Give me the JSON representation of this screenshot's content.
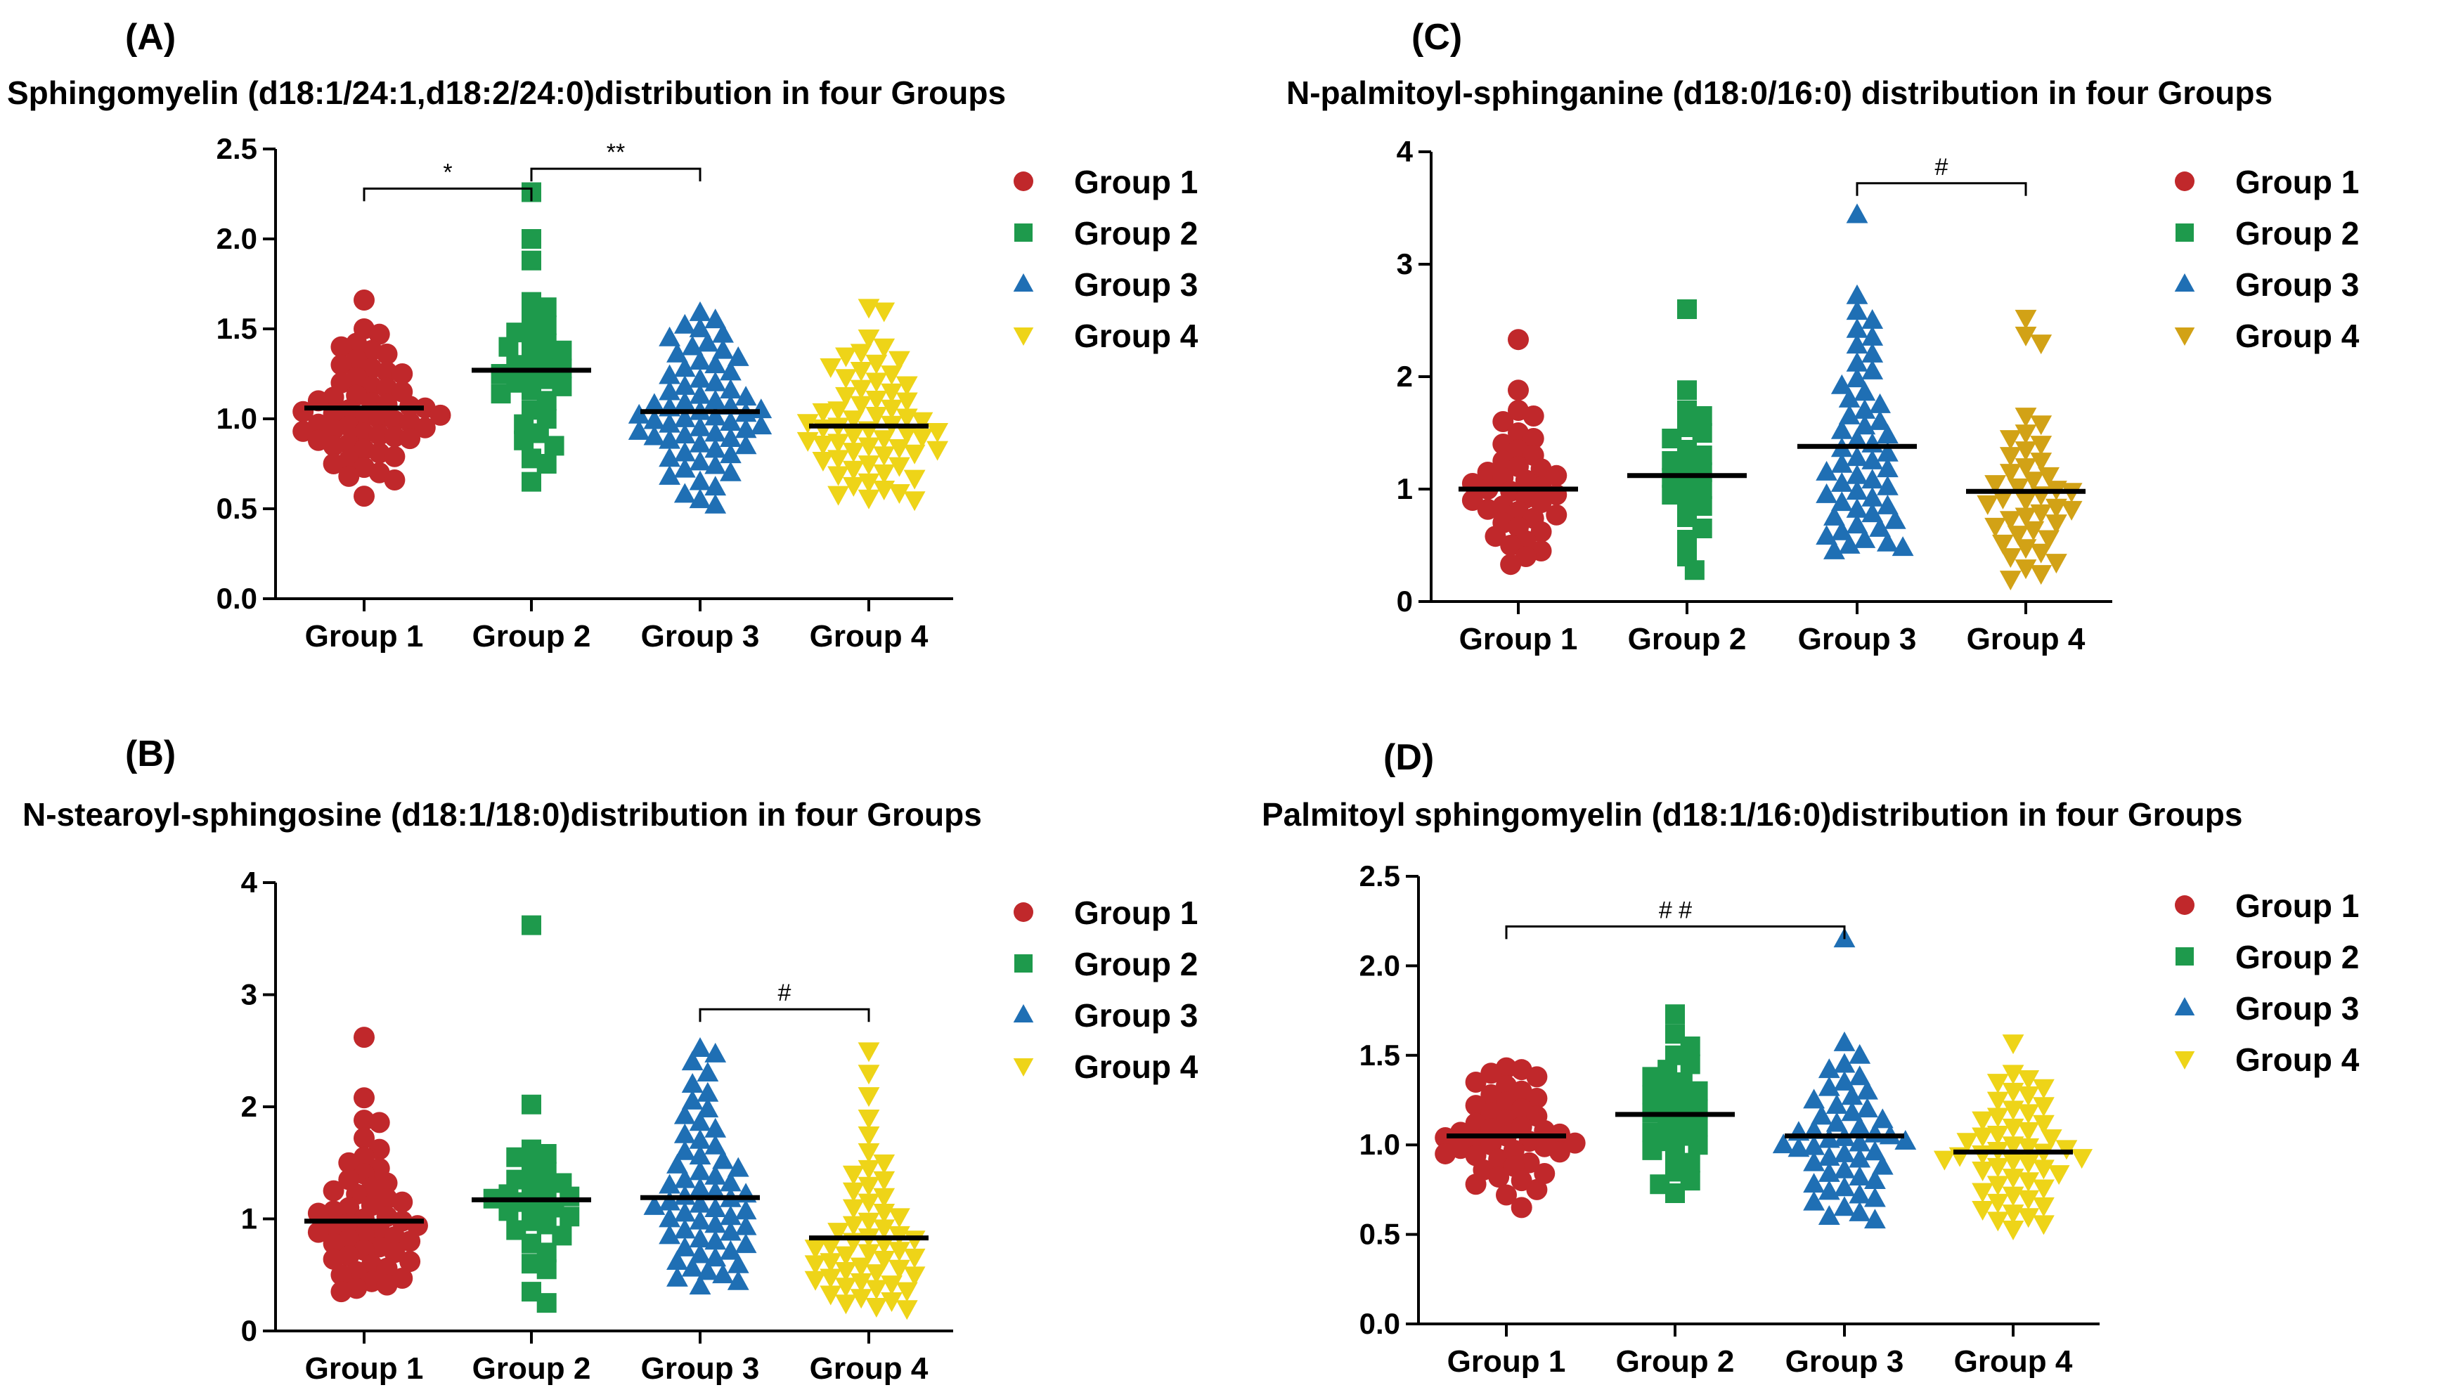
{
  "colors": {
    "group1": "#c0282b",
    "group2": "#1e9a4c",
    "group3": "#1f6fb4",
    "group4_A": "#eed418",
    "group4_B": "#eed418",
    "group4_C": "#d2a216",
    "group4_D": "#eed418"
  },
  "legend_labels": [
    "Group 1",
    "Group 2",
    "Group 3",
    "Group 4"
  ],
  "chart_data": [
    {
      "id": "A",
      "panel_label": "(A)",
      "type": "scatter",
      "title": "Sphingomyelin (d18:1/24:1,d18:2/24:0)distribution in four Groups",
      "categories": [
        "Group 1",
        "Group 2",
        "Group 3",
        "Group 4"
      ],
      "ylim": [
        0,
        2.5
      ],
      "yticks": [
        "0.0",
        "0.5",
        "1.0",
        "1.5",
        "2.0",
        "2.5"
      ],
      "ytick_values": [
        0,
        0.5,
        1.0,
        1.5,
        2.0,
        2.5
      ],
      "means": [
        1.06,
        1.27,
        1.04,
        0.96
      ],
      "series": [
        {
          "name": "Group 1",
          "marker": "circle",
          "values": [
            1.66,
            0.57,
            1.5,
            1.47,
            1.42,
            1.4,
            1.38,
            1.36,
            1.33,
            1.3,
            1.28,
            1.26,
            1.25,
            1.23,
            1.2,
            1.18,
            1.17,
            1.15,
            1.13,
            1.12,
            1.1,
            1.09,
            1.08,
            1.07,
            1.06,
            1.05,
            1.04,
            1.03,
            1.02,
            1.01,
            1.0,
            0.99,
            0.98,
            0.97,
            0.96,
            0.95,
            0.94,
            0.93,
            0.92,
            0.91,
            0.9,
            0.89,
            0.88,
            0.86,
            0.85,
            0.83,
            0.81,
            0.79,
            0.77,
            0.75,
            0.73,
            0.7,
            0.68,
            0.66
          ]
        },
        {
          "name": "Group 2",
          "marker": "square",
          "values": [
            2.26,
            2.0,
            1.88,
            1.65,
            1.62,
            1.55,
            1.52,
            1.48,
            1.45,
            1.42,
            1.4,
            1.38,
            1.35,
            1.32,
            1.3,
            1.28,
            1.26,
            1.25,
            1.22,
            1.2,
            1.18,
            1.16,
            1.14,
            1.1,
            1.05,
            1.0,
            0.97,
            0.92,
            0.88,
            0.85,
            0.78,
            0.75,
            0.65
          ]
        },
        {
          "name": "Group 3",
          "marker": "triangle",
          "values": [
            1.59,
            1.55,
            1.52,
            1.5,
            1.47,
            1.45,
            1.42,
            1.4,
            1.38,
            1.36,
            1.34,
            1.32,
            1.3,
            1.28,
            1.26,
            1.24,
            1.22,
            1.2,
            1.18,
            1.16,
            1.15,
            1.13,
            1.12,
            1.1,
            1.09,
            1.08,
            1.07,
            1.06,
            1.05,
            1.04,
            1.03,
            1.02,
            1.01,
            1.0,
            0.99,
            0.98,
            0.97,
            0.96,
            0.95,
            0.94,
            0.93,
            0.92,
            0.91,
            0.9,
            0.89,
            0.88,
            0.86,
            0.85,
            0.83,
            0.81,
            0.8,
            0.78,
            0.76,
            0.74,
            0.72,
            0.7,
            0.68,
            0.65,
            0.62,
            0.58,
            0.55,
            0.52
          ]
        },
        {
          "name": "Group 4",
          "marker": "triangle-down",
          "values": [
            1.62,
            1.6,
            1.45,
            1.4,
            1.37,
            1.35,
            1.33,
            1.31,
            1.29,
            1.27,
            1.25,
            1.23,
            1.21,
            1.19,
            1.17,
            1.15,
            1.13,
            1.11,
            1.1,
            1.08,
            1.06,
            1.05,
            1.04,
            1.02,
            1.01,
            1.0,
            0.99,
            0.98,
            0.97,
            0.96,
            0.95,
            0.94,
            0.93,
            0.92,
            0.91,
            0.9,
            0.89,
            0.88,
            0.87,
            0.86,
            0.85,
            0.84,
            0.83,
            0.82,
            0.81,
            0.8,
            0.78,
            0.77,
            0.75,
            0.74,
            0.72,
            0.7,
            0.69,
            0.67,
            0.65,
            0.63,
            0.61,
            0.59,
            0.58,
            0.56,
            0.55
          ]
        }
      ],
      "brackets": [
        {
          "from": 0,
          "to": 1,
          "y": 2.28,
          "label": "*"
        },
        {
          "from": 1,
          "to": 2,
          "y": 2.39,
          "label": "**"
        }
      ]
    },
    {
      "id": "B",
      "panel_label": "(B)",
      "type": "scatter",
      "title": "N-stearoyl-sphingosine (d18:1/18:0)distribution in four Groups",
      "categories": [
        "Group 1",
        "Group 2",
        "Group 3",
        "Group 4"
      ],
      "ylim": [
        0,
        4
      ],
      "yticks": [
        "0",
        "1",
        "2",
        "3",
        "4"
      ],
      "ytick_values": [
        0,
        1,
        2,
        3,
        4
      ],
      "means": [
        0.98,
        1.17,
        1.19,
        0.83
      ],
      "series": [
        {
          "name": "Group 1",
          "marker": "circle",
          "values": [
            2.62,
            2.08,
            1.88,
            1.86,
            1.72,
            1.62,
            1.55,
            1.5,
            1.45,
            1.4,
            1.35,
            1.32,
            1.28,
            1.25,
            1.22,
            1.18,
            1.15,
            1.12,
            1.1,
            1.07,
            1.05,
            1.02,
            1.0,
            0.98,
            0.96,
            0.94,
            0.92,
            0.9,
            0.88,
            0.86,
            0.84,
            0.82,
            0.8,
            0.78,
            0.75,
            0.72,
            0.7,
            0.67,
            0.64,
            0.62,
            0.59,
            0.56,
            0.53,
            0.5,
            0.47,
            0.44,
            0.41,
            0.38,
            0.35
          ]
        },
        {
          "name": "Group 2",
          "marker": "square",
          "values": [
            3.62,
            2.02,
            1.62,
            1.58,
            1.55,
            1.45,
            1.42,
            1.35,
            1.32,
            1.28,
            1.25,
            1.22,
            1.2,
            1.18,
            1.15,
            1.12,
            1.1,
            1.07,
            1.02,
            0.98,
            0.95,
            0.9,
            0.85,
            0.78,
            0.7,
            0.6,
            0.55,
            0.35,
            0.25
          ]
        },
        {
          "name": "Group 3",
          "marker": "triangle",
          "values": [
            2.52,
            2.47,
            2.4,
            2.3,
            2.2,
            2.12,
            2.05,
            1.98,
            1.92,
            1.86,
            1.8,
            1.75,
            1.7,
            1.65,
            1.6,
            1.56,
            1.52,
            1.48,
            1.45,
            1.42,
            1.38,
            1.35,
            1.32,
            1.3,
            1.27,
            1.24,
            1.22,
            1.2,
            1.18,
            1.15,
            1.13,
            1.11,
            1.09,
            1.07,
            1.05,
            1.02,
            1.0,
            0.98,
            0.95,
            0.93,
            0.9,
            0.88,
            0.85,
            0.82,
            0.8,
            0.77,
            0.74,
            0.71,
            0.68,
            0.65,
            0.62,
            0.59,
            0.56,
            0.53,
            0.5,
            0.47,
            0.44,
            0.4
          ]
        },
        {
          "name": "Group 4",
          "marker": "triangle-down",
          "values": [
            2.5,
            2.3,
            2.1,
            1.9,
            1.75,
            1.6,
            1.5,
            1.45,
            1.4,
            1.35,
            1.3,
            1.25,
            1.2,
            1.15,
            1.1,
            1.06,
            1.02,
            0.98,
            0.95,
            0.92,
            0.89,
            0.86,
            0.84,
            0.82,
            0.8,
            0.78,
            0.76,
            0.74,
            0.72,
            0.7,
            0.68,
            0.66,
            0.64,
            0.62,
            0.6,
            0.58,
            0.56,
            0.54,
            0.52,
            0.5,
            0.48,
            0.46,
            0.44,
            0.42,
            0.4,
            0.38,
            0.36,
            0.33,
            0.3,
            0.27,
            0.25,
            0.22,
            0.2
          ]
        }
      ],
      "brackets": [
        {
          "from": 2,
          "to": 3,
          "y": 2.87,
          "label": "#"
        }
      ]
    },
    {
      "id": "C",
      "panel_label": "(C)",
      "type": "scatter",
      "title": "N-palmitoyl-sphinganine (d18:0/16:0) distribution in four Groups",
      "categories": [
        "Group 1",
        "Group 2",
        "Group 3",
        "Group 4"
      ],
      "ylim": [
        0,
        4
      ],
      "yticks": [
        "0",
        "1",
        "2",
        "3",
        "4"
      ],
      "ytick_values": [
        0,
        1,
        2,
        3,
        4
      ],
      "means": [
        1.0,
        1.12,
        1.38,
        0.98
      ],
      "series": [
        {
          "name": "Group 1",
          "marker": "circle",
          "values": [
            2.33,
            1.88,
            1.7,
            1.65,
            1.6,
            1.5,
            1.45,
            1.4,
            1.35,
            1.3,
            1.25,
            1.2,
            1.18,
            1.15,
            1.12,
            1.1,
            1.08,
            1.05,
            1.02,
            1.0,
            0.98,
            0.95,
            0.92,
            0.9,
            0.88,
            0.85,
            0.82,
            0.8,
            0.77,
            0.74,
            0.7,
            0.66,
            0.62,
            0.58,
            0.54,
            0.5,
            0.45,
            0.4,
            0.33
          ]
        },
        {
          "name": "Group 2",
          "marker": "square",
          "values": [
            2.6,
            1.88,
            1.7,
            1.65,
            1.55,
            1.5,
            1.45,
            1.35,
            1.3,
            1.25,
            1.2,
            1.15,
            1.1,
            1.05,
            1.0,
            0.95,
            0.9,
            0.85,
            0.75,
            0.65,
            0.55,
            0.4,
            0.28
          ]
        },
        {
          "name": "Group 3",
          "marker": "triangle",
          "values": [
            3.44,
            2.72,
            2.58,
            2.5,
            2.42,
            2.35,
            2.28,
            2.2,
            2.12,
            2.05,
            1.98,
            1.92,
            1.86,
            1.8,
            1.75,
            1.7,
            1.65,
            1.6,
            1.56,
            1.52,
            1.48,
            1.44,
            1.4,
            1.36,
            1.32,
            1.28,
            1.25,
            1.22,
            1.18,
            1.15,
            1.12,
            1.08,
            1.05,
            1.02,
            0.98,
            0.95,
            0.92,
            0.88,
            0.85,
            0.82,
            0.78,
            0.75,
            0.72,
            0.68,
            0.65,
            0.62,
            0.58,
            0.55,
            0.52,
            0.5,
            0.48,
            0.45
          ]
        },
        {
          "name": "Group 4",
          "marker": "triangle-down",
          "values": [
            2.52,
            2.37,
            2.3,
            1.65,
            1.58,
            1.5,
            1.45,
            1.4,
            1.35,
            1.3,
            1.25,
            1.2,
            1.15,
            1.12,
            1.08,
            1.05,
            1.02,
            1.0,
            0.98,
            0.95,
            0.92,
            0.9,
            0.87,
            0.84,
            0.82,
            0.79,
            0.76,
            0.73,
            0.7,
            0.67,
            0.64,
            0.6,
            0.56,
            0.52,
            0.48,
            0.44,
            0.4,
            0.35,
            0.3,
            0.25,
            0.2
          ]
        }
      ],
      "brackets": [
        {
          "from": 2,
          "to": 3,
          "y": 3.72,
          "label": "#"
        }
      ]
    },
    {
      "id": "D",
      "panel_label": "(D)",
      "type": "scatter",
      "title": "Palmitoyl sphingomyelin (d18:1/16:0)distribution in four Groups",
      "categories": [
        "Group 1",
        "Group 2",
        "Group 3",
        "Group 4"
      ],
      "ylim": [
        0,
        2.5
      ],
      "yticks": [
        "0.0",
        "0.5",
        "1.0",
        "1.5",
        "2.0",
        "2.5"
      ],
      "ytick_values": [
        0,
        0.5,
        1.0,
        1.5,
        2.0,
        2.5
      ],
      "means": [
        1.05,
        1.17,
        1.05,
        0.96
      ],
      "series": [
        {
          "name": "Group 1",
          "marker": "circle",
          "values": [
            1.43,
            1.42,
            1.4,
            1.38,
            1.35,
            1.33,
            1.3,
            1.28,
            1.26,
            1.24,
            1.22,
            1.2,
            1.18,
            1.16,
            1.14,
            1.12,
            1.1,
            1.09,
            1.08,
            1.07,
            1.06,
            1.05,
            1.04,
            1.03,
            1.02,
            1.01,
            1.0,
            0.99,
            0.98,
            0.97,
            0.96,
            0.95,
            0.94,
            0.92,
            0.9,
            0.88,
            0.86,
            0.84,
            0.82,
            0.8,
            0.78,
            0.75,
            0.72,
            0.65
          ]
        },
        {
          "name": "Group 2",
          "marker": "square",
          "values": [
            1.73,
            1.62,
            1.55,
            1.5,
            1.45,
            1.42,
            1.38,
            1.35,
            1.32,
            1.3,
            1.28,
            1.25,
            1.22,
            1.2,
            1.18,
            1.15,
            1.12,
            1.1,
            1.07,
            1.05,
            1.02,
            1.0,
            0.97,
            0.94,
            0.9,
            0.85,
            0.8,
            0.78,
            0.73
          ]
        },
        {
          "name": "Group 3",
          "marker": "triangle",
          "values": [
            2.15,
            1.57,
            1.5,
            1.45,
            1.42,
            1.38,
            1.35,
            1.32,
            1.3,
            1.27,
            1.25,
            1.22,
            1.2,
            1.18,
            1.16,
            1.14,
            1.12,
            1.1,
            1.08,
            1.07,
            1.06,
            1.05,
            1.04,
            1.03,
            1.02,
            1.01,
            1.0,
            0.99,
            0.98,
            0.96,
            0.95,
            0.93,
            0.92,
            0.9,
            0.88,
            0.86,
            0.84,
            0.82,
            0.8,
            0.78,
            0.76,
            0.74,
            0.72,
            0.7,
            0.68,
            0.65,
            0.62,
            0.6,
            0.58
          ]
        },
        {
          "name": "Group 4",
          "marker": "triangle-down",
          "values": [
            1.57,
            1.4,
            1.37,
            1.35,
            1.32,
            1.3,
            1.28,
            1.25,
            1.22,
            1.2,
            1.18,
            1.16,
            1.14,
            1.12,
            1.1,
            1.08,
            1.06,
            1.05,
            1.04,
            1.02,
            1.0,
            0.99,
            0.98,
            0.97,
            0.96,
            0.95,
            0.94,
            0.93,
            0.92,
            0.91,
            0.9,
            0.88,
            0.87,
            0.86,
            0.84,
            0.82,
            0.8,
            0.78,
            0.76,
            0.74,
            0.72,
            0.7,
            0.68,
            0.66,
            0.64,
            0.62,
            0.6,
            0.58,
            0.56,
            0.53
          ]
        }
      ],
      "brackets": [
        {
          "from": 0,
          "to": 2,
          "y": 2.22,
          "label": "# #"
        }
      ]
    }
  ]
}
